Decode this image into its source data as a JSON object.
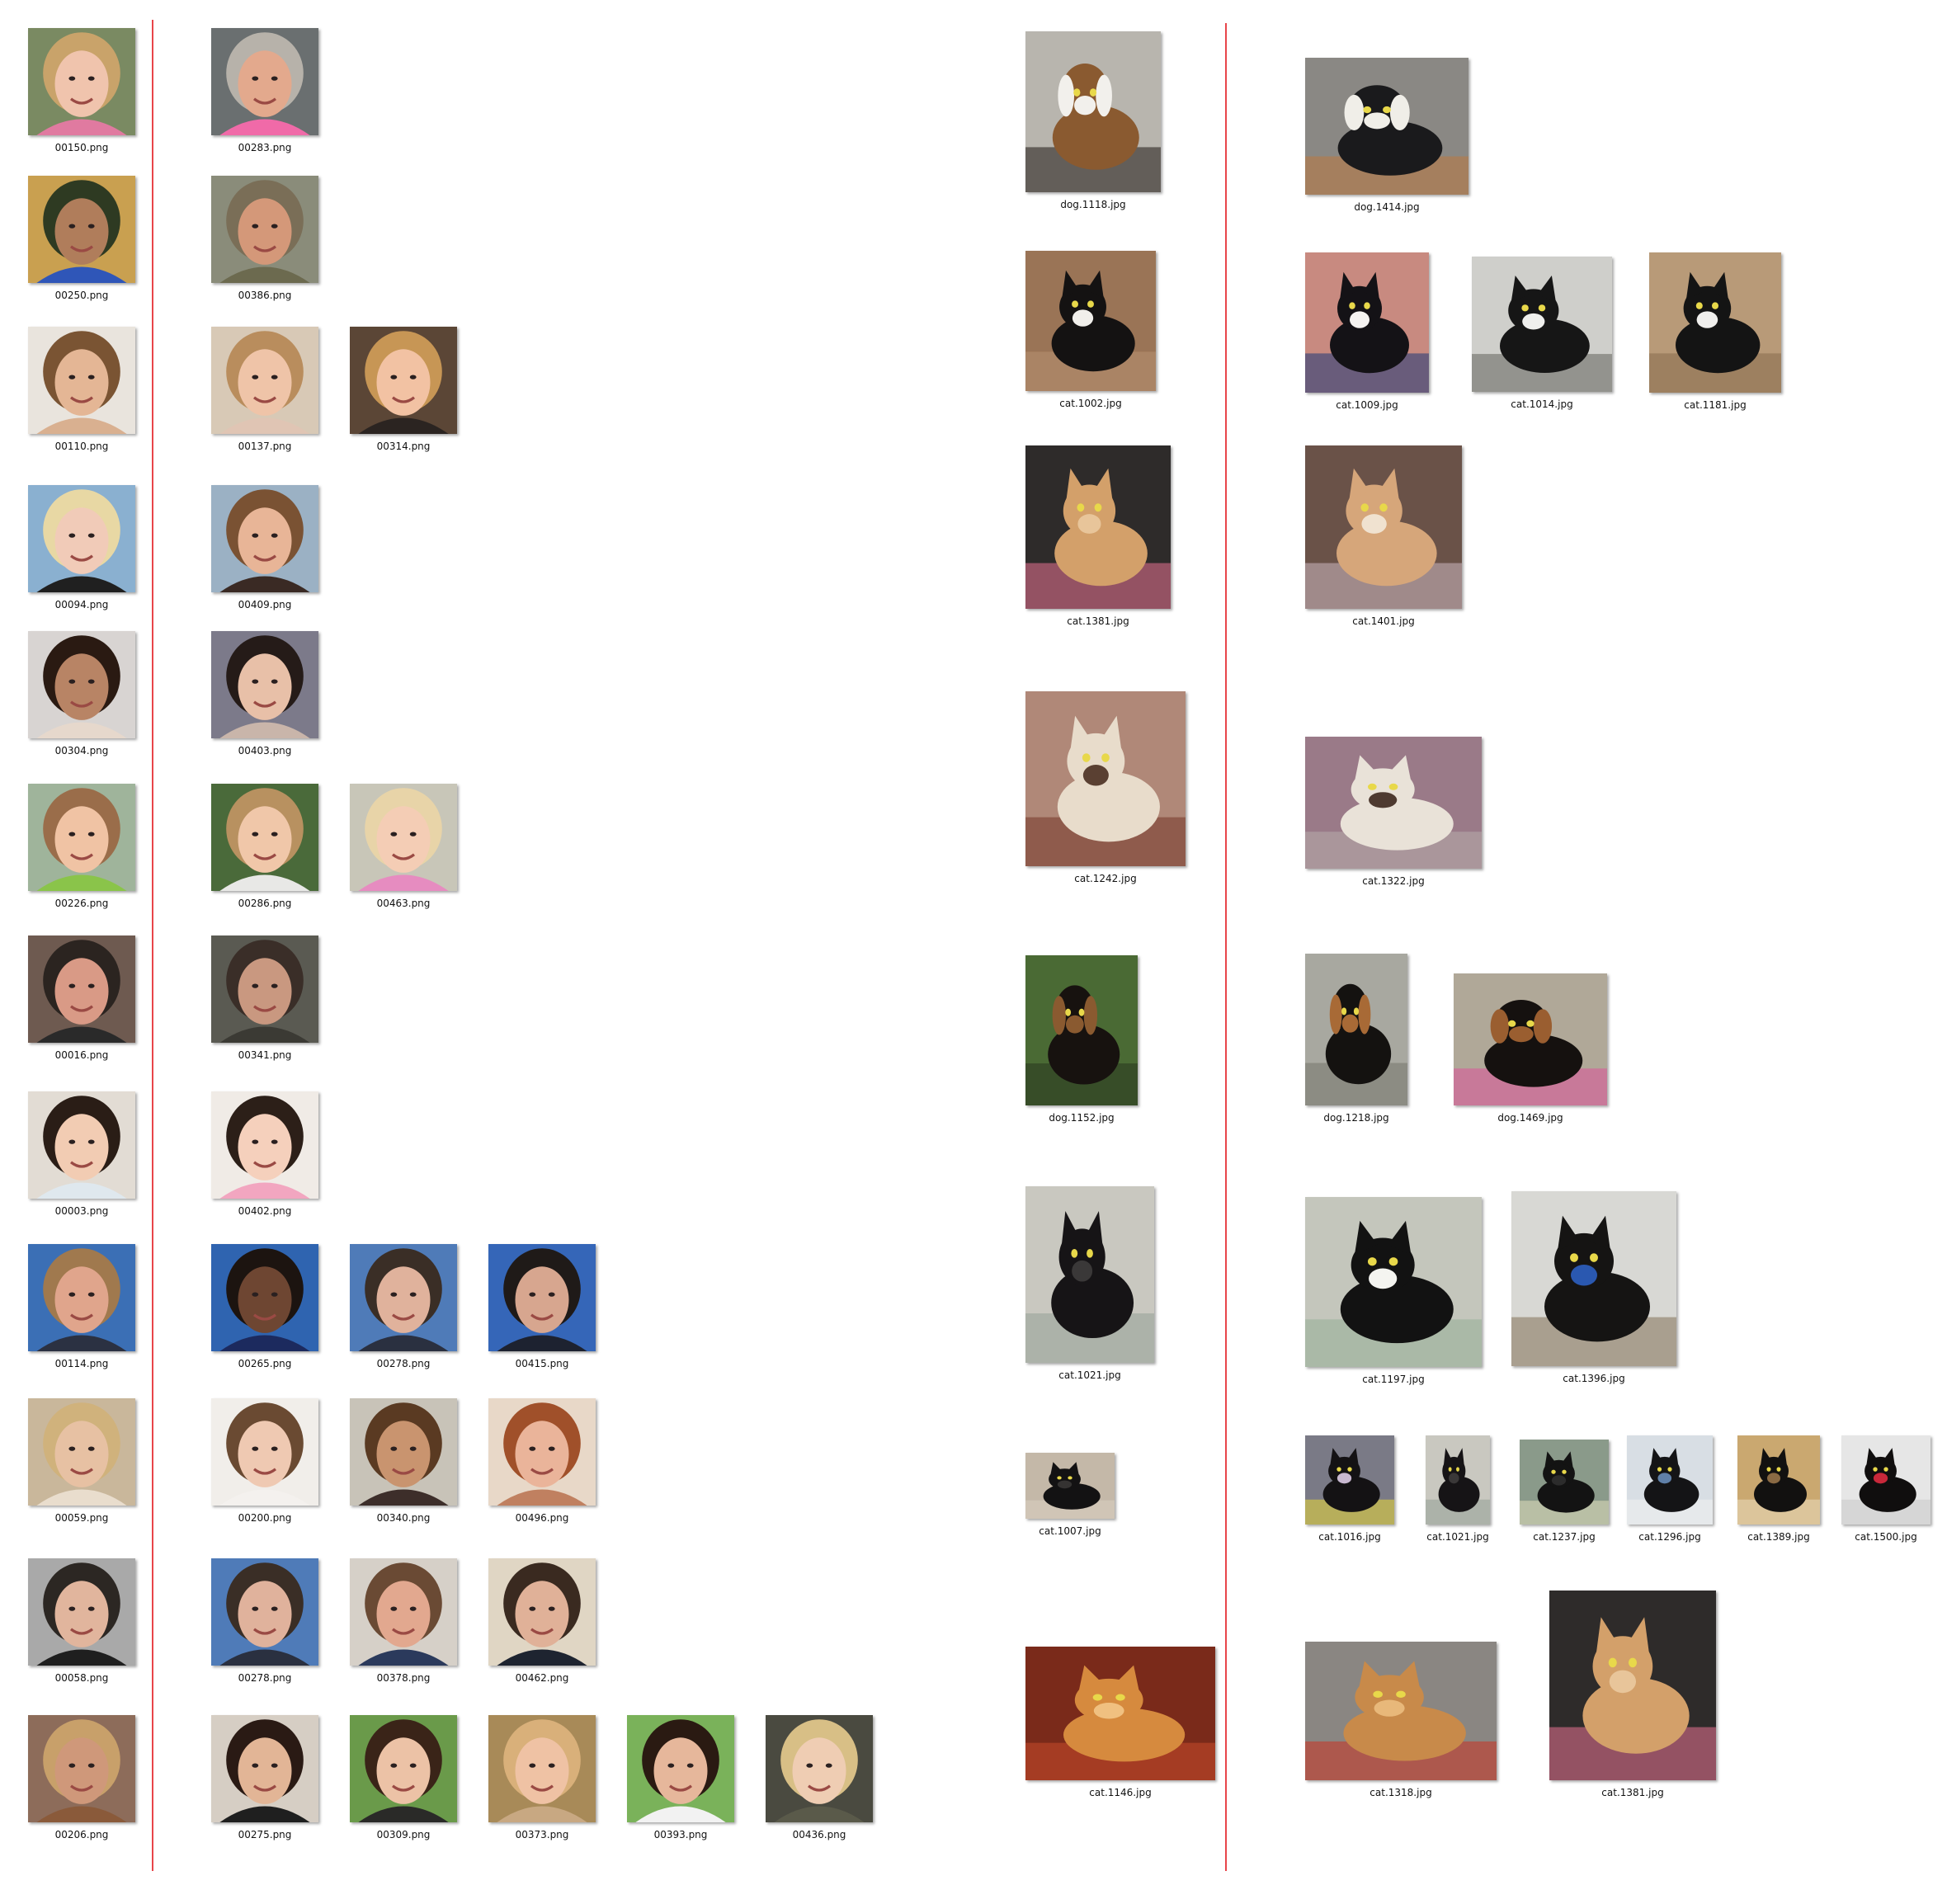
{
  "faces": {
    "queries": [
      {
        "file": "00150.png",
        "subject": "face-girl-blonde",
        "colors": {
          "bg": "#7a8a62",
          "hair": "#c9a36a",
          "skin": "#f0c4ad",
          "cloth": "#e07aa0"
        }
      },
      {
        "file": "00250.png",
        "subject": "face-boy-hat-glasses",
        "colors": {
          "bg": "#c9a050",
          "hair": "#2e3a22",
          "skin": "#b07d5b",
          "cloth": "#2f56b8"
        }
      },
      {
        "file": "00110.png",
        "subject": "face-woman-asian",
        "colors": {
          "bg": "#e9e4dd",
          "hair": "#7a5433",
          "skin": "#e4b695",
          "cloth": "#d9b090"
        }
      },
      {
        "file": "00094.png",
        "subject": "face-woman-grad-cap",
        "colors": {
          "bg": "#8ab0d0",
          "hair": "#e8d8a4",
          "skin": "#f1cbb8",
          "cloth": "#202020"
        }
      },
      {
        "file": "00304.png",
        "subject": "face-woman-makeup",
        "colors": {
          "bg": "#d8d4d2",
          "hair": "#2a1a12",
          "skin": "#b88465",
          "cloth": "#e6d8cc"
        }
      },
      {
        "file": "00226.png",
        "subject": "face-toddler",
        "colors": {
          "bg": "#9fb49b",
          "hair": "#9a6d4a",
          "skin": "#f0c3a4",
          "cloth": "#8ac44a"
        }
      },
      {
        "file": "00016.png",
        "subject": "face-man",
        "colors": {
          "bg": "#6e5a50",
          "hair": "#2b2420",
          "skin": "#d99a86",
          "cloth": "#2a2a2a"
        }
      },
      {
        "file": "00003.png",
        "subject": "face-baby-asian",
        "colors": {
          "bg": "#e2dcd4",
          "hair": "#2a1d16",
          "skin": "#f2ccb3",
          "cloth": "#dfe8ee"
        }
      },
      {
        "file": "00114.png",
        "subject": "face-man-suit",
        "colors": {
          "bg": "#3b6fb5",
          "hair": "#a0794e",
          "skin": "#e0a58c",
          "cloth": "#2b3142"
        }
      },
      {
        "file": "00059.png",
        "subject": "face-woman-blonde",
        "colors": {
          "bg": "#c9b79b",
          "hair": "#d0b27c",
          "skin": "#e7c1a3",
          "cloth": "#e9ddcd"
        }
      },
      {
        "file": "00058.png",
        "subject": "face-man-jacket",
        "colors": {
          "bg": "#a9a9a9",
          "hair": "#2c2723",
          "skin": "#e1b59d",
          "cloth": "#1f1f1f"
        }
      },
      {
        "file": "00206.png",
        "subject": "face-woman-braids",
        "colors": {
          "bg": "#8d6c5a",
          "hair": "#c8a06a",
          "skin": "#cf987a",
          "cloth": "#8a5a3a"
        }
      }
    ],
    "results": [
      [
        {
          "file": "00283.png",
          "subject": "face-older-woman",
          "colors": {
            "bg": "#6a6f70",
            "hair": "#b7b2aa",
            "skin": "#e3a98d",
            "cloth": "#f06aa8"
          }
        }
      ],
      [
        {
          "file": "00386.png",
          "subject": "face-man-hat",
          "colors": {
            "bg": "#8a8c7a",
            "hair": "#7a6e57",
            "skin": "#d49879",
            "cloth": "#6c6a4f"
          }
        }
      ],
      [
        {
          "file": "00137.png",
          "subject": "face-girl",
          "colors": {
            "bg": "#d8c9b6",
            "hair": "#b98d5d",
            "skin": "#efc4a8",
            "cloth": "#e0c5b4"
          }
        },
        {
          "file": "00314.png",
          "subject": "face-woman-round",
          "colors": {
            "bg": "#5b4636",
            "hair": "#c79655",
            "skin": "#f2c2a3",
            "cloth": "#2b2421"
          }
        }
      ],
      [
        {
          "file": "00409.png",
          "subject": "face-woman-cap",
          "colors": {
            "bg": "#9bb1c4",
            "hair": "#7a5233",
            "skin": "#e8b597",
            "cloth": "#3a2a24"
          }
        }
      ],
      [
        {
          "file": "00403.png",
          "subject": "face-woman-dark-hair",
          "colors": {
            "bg": "#7c7a8a",
            "hair": "#251b18",
            "skin": "#e8c0a8",
            "cloth": "#c9b5aa"
          }
        }
      ],
      [
        {
          "file": "00286.png",
          "subject": "face-boy",
          "colors": {
            "bg": "#4a6a3a",
            "hair": "#b89160",
            "skin": "#f0c7a9",
            "cloth": "#e8e8e6"
          }
        },
        {
          "file": "00463.png",
          "subject": "face-toddler-pink",
          "colors": {
            "bg": "#c8c6b8",
            "hair": "#e8d4a8",
            "skin": "#f4cdb5",
            "cloth": "#e68cc0"
          }
        }
      ],
      [
        {
          "file": "00341.png",
          "subject": "face-man-older",
          "colors": {
            "bg": "#5a5a52",
            "hair": "#3a2e28",
            "skin": "#c99880",
            "cloth": "#3b3a34"
          }
        }
      ],
      [
        {
          "file": "00402.png",
          "subject": "face-baby-girl",
          "colors": {
            "bg": "#f0ebe6",
            "hair": "#2c1f18",
            "skin": "#f5d0bc",
            "cloth": "#f2a6c0"
          }
        }
      ],
      [
        {
          "file": "00265.png",
          "subject": "face-man-smiling",
          "colors": {
            "bg": "#2f64b0",
            "hair": "#1c1410",
            "skin": "#6e4632",
            "cloth": "#1c2a5e"
          }
        },
        {
          "file": "00278.png",
          "subject": "face-man-portrait",
          "colors": {
            "bg": "#4f7bb8",
            "hair": "#3a2e26",
            "skin": "#e0b29c",
            "cloth": "#2a3040"
          }
        },
        {
          "file": "00415.png",
          "subject": "face-man-goatee",
          "colors": {
            "bg": "#3566b8",
            "hair": "#1f1a18",
            "skin": "#d7a68f",
            "cloth": "#1d2230"
          }
        }
      ],
      [
        {
          "file": "00200.png",
          "subject": "face-woman-light",
          "colors": {
            "bg": "#f1eeea",
            "hair": "#6a4a32",
            "skin": "#efc9b2",
            "cloth": "#f4f1ee"
          }
        },
        {
          "file": "00340.png",
          "subject": "face-woman-smiling",
          "colors": {
            "bg": "#c8c3b8",
            "hair": "#5a3a22",
            "skin": "#c9946f",
            "cloth": "#3d2e2a"
          }
        },
        {
          "file": "00496.png",
          "subject": "face-woman-red-hair",
          "colors": {
            "bg": "#e8d8c8",
            "hair": "#a0502a",
            "skin": "#eab49a",
            "cloth": "#c08060"
          }
        }
      ],
      [
        {
          "file": "00278.png",
          "subject": "face-man-portrait",
          "colors": {
            "bg": "#4f7bb8",
            "hair": "#3a2e26",
            "skin": "#e0b29c",
            "cloth": "#2a3040"
          }
        },
        {
          "file": "00378.png",
          "subject": "face-man-mustache",
          "colors": {
            "bg": "#d6d0c8",
            "hair": "#6a4a34",
            "skin": "#e2a88f",
            "cloth": "#2b3a5c"
          }
        },
        {
          "file": "00462.png",
          "subject": "face-man-glasses",
          "colors": {
            "bg": "#e0d6c4",
            "hair": "#3a2a20",
            "skin": "#e0b198",
            "cloth": "#1e2430"
          }
        }
      ],
      [
        {
          "file": "00275.png",
          "subject": "face-woman-dark-hair-smile",
          "colors": {
            "bg": "#d6cec4",
            "hair": "#2a1a14",
            "skin": "#e2b596",
            "cloth": "#1f1f1f"
          }
        },
        {
          "file": "00309.png",
          "subject": "face-woman-outdoor",
          "colors": {
            "bg": "#6a9a4a",
            "hair": "#3a2418",
            "skin": "#ecc2a6",
            "cloth": "#2a2a28"
          }
        },
        {
          "file": "00373.png",
          "subject": "face-woman-blonde-smile",
          "colors": {
            "bg": "#a88a58",
            "hair": "#d9b07a",
            "skin": "#efc2a4",
            "cloth": "#c8a882"
          }
        },
        {
          "file": "00393.png",
          "subject": "face-woman-asian-smile",
          "colors": {
            "bg": "#7ab25a",
            "hair": "#2a1a12",
            "skin": "#e6b79b",
            "cloth": "#f2f2f2"
          }
        },
        {
          "file": "00436.png",
          "subject": "face-woman-fair-hair",
          "colors": {
            "bg": "#4a4a40",
            "hair": "#d8bf86",
            "skin": "#efcdb3",
            "cloth": "#5a5a4a"
          }
        }
      ]
    ]
  },
  "pets": {
    "queries": [
      {
        "file": "dog.1118.jpg",
        "subject": "dog-beagle",
        "colors": {
          "bg": "#b8b5ae",
          "a": "#8a5a30",
          "b": "#f2f0ec",
          "c": "#2a2420"
        }
      },
      {
        "file": "cat.1002.jpg",
        "subject": "cat-tuxedo",
        "colors": {
          "bg": "#9a7456",
          "a": "#141212",
          "b": "#f1efeb",
          "c": "#b59070"
        }
      },
      {
        "file": "cat.1381.jpg",
        "subject": "cat-orange-tabby",
        "colors": {
          "bg": "#2e2b2a",
          "a": "#d3a06a",
          "b": "#e8c59a",
          "c": "#d86c8a"
        }
      },
      {
        "file": "cat.1242.jpg",
        "subject": "cat-siamese",
        "colors": {
          "bg": "#b08878",
          "a": "#e8dccb",
          "b": "#5a4032",
          "c": "#7a3e2e"
        }
      },
      {
        "file": "dog.1152.jpg",
        "subject": "dog-rottweiler",
        "colors": {
          "bg": "#4a6a34",
          "a": "#17120f",
          "b": "#8a5a30",
          "c": "#2b3a22"
        }
      },
      {
        "file": "cat.1021.jpg",
        "subject": "cat-black",
        "colors": {
          "bg": "#c9c8c0",
          "a": "#161416",
          "b": "#3a3838",
          "c": "#9aa39a"
        }
      },
      {
        "file": "cat.1007.jpg",
        "subject": "cat-black-small",
        "colors": {
          "bg": "#c4b8a8",
          "a": "#131213",
          "b": "#353332",
          "c": "#d8cdbf"
        }
      },
      {
        "file": "cat.1146.jpg",
        "subject": "cat-orange-sleeping",
        "colors": {
          "bg": "#7a2a1a",
          "a": "#d68a3e",
          "b": "#f0c080",
          "c": "#c14a2a"
        }
      }
    ],
    "results": [
      [
        {
          "file": "dog.1414.jpg",
          "subject": "dog-beagle-sniffing",
          "colors": {
            "bg": "#8a8884",
            "a": "#1a1a1c",
            "b": "#f0eee8",
            "c": "#b87a44"
          }
        }
      ],
      [
        {
          "file": "cat.1009.jpg",
          "subject": "cat-tuxedo-held",
          "colors": {
            "bg": "#c88a80",
            "a": "#141216",
            "b": "#f5f3f1",
            "c": "#2a3e78"
          }
        },
        {
          "file": "cat.1014.jpg",
          "subject": "cat-tuxedo-face",
          "colors": {
            "bg": "#cfcfcb",
            "a": "#161616",
            "b": "#efefed",
            "c": "#6a6a66"
          }
        },
        {
          "file": "cat.1181.jpg",
          "subject": "cat-tuxedo-staring",
          "colors": {
            "bg": "#b89a78",
            "a": "#141414",
            "b": "#f0efed",
            "c": "#8a7050"
          }
        }
      ],
      [
        {
          "file": "cat.1401.jpg",
          "subject": "cat-orange-standing",
          "colors": {
            "bg": "#6a5248",
            "a": "#d6a67a",
            "b": "#f0e2d0",
            "c": "#c4b0b8"
          }
        }
      ],
      [
        {
          "file": "cat.1322.jpg",
          "subject": "cat-siamese-lying",
          "colors": {
            "bg": "#9a7a88",
            "a": "#e9e2d8",
            "b": "#4e3a30",
            "c": "#b6a8a8"
          }
        }
      ],
      [
        {
          "file": "dog.1218.jpg",
          "subject": "dog-rottweiler-puppy",
          "colors": {
            "bg": "#a8a8a0",
            "a": "#141210",
            "b": "#a86a36",
            "c": "#7a7a70"
          }
        },
        {
          "file": "dog.1469.jpg",
          "subject": "dog-rottweiler-sitting",
          "colors": {
            "bg": "#b0a898",
            "a": "#15110f",
            "b": "#9a5e30",
            "c": "#d85a9a"
          }
        }
      ],
      [
        {
          "file": "cat.1197.jpg",
          "subject": "cat-black-white-walking",
          "colors": {
            "bg": "#c4c6bc",
            "a": "#121212",
            "b": "#f4f4f0",
            "c": "#9ab09a"
          }
        },
        {
          "file": "cat.1396.jpg",
          "subject": "cat-black-standing",
          "colors": {
            "bg": "#d8d8d4",
            "a": "#151413",
            "b": "#2a58b0",
            "c": "#8a7a60"
          }
        }
      ],
      [
        {
          "file": "cat.1016.jpg",
          "subject": "cat-black-face",
          "colors": {
            "bg": "#7a7a86",
            "a": "#141214",
            "b": "#c8b8d0",
            "c": "#e0d040"
          }
        },
        {
          "file": "cat.1021.jpg",
          "subject": "cat-black",
          "colors": {
            "bg": "#c9c8c0",
            "a": "#161416",
            "b": "#3a3838",
            "c": "#9aa39a"
          }
        },
        {
          "file": "cat.1237.jpg",
          "subject": "cat-black-closeup",
          "colors": {
            "bg": "#8a9a8a",
            "a": "#131313",
            "b": "#2c2c2c",
            "c": "#d8d8b8"
          }
        },
        {
          "file": "cat.1296.jpg",
          "subject": "cat-black-window",
          "colors": {
            "bg": "#d8dee4",
            "a": "#141416",
            "b": "#6080a8",
            "c": "#f0f0f0"
          }
        },
        {
          "file": "cat.1389.jpg",
          "subject": "cat-black-sitting",
          "colors": {
            "bg": "#caa870",
            "a": "#121110",
            "b": "#8a6a44",
            "c": "#e8d8b8"
          }
        },
        {
          "file": "cat.1500.jpg",
          "subject": "cat-black-fluffy",
          "colors": {
            "bg": "#e6e6e6",
            "a": "#100e0e",
            "b": "#c8283a",
            "c": "#cccccc"
          }
        }
      ],
      [
        {
          "file": "cat.1318.jpg",
          "subject": "cat-orange-arched",
          "colors": {
            "bg": "#8a8682",
            "a": "#c88a4a",
            "b": "#e8b87a",
            "c": "#c43a2a"
          }
        },
        {
          "file": "cat.1381.jpg",
          "subject": "cat-orange-tabby",
          "colors": {
            "bg": "#2e2b2a",
            "a": "#d3a06a",
            "b": "#e8c59a",
            "c": "#d86c8a"
          }
        }
      ]
    ]
  }
}
